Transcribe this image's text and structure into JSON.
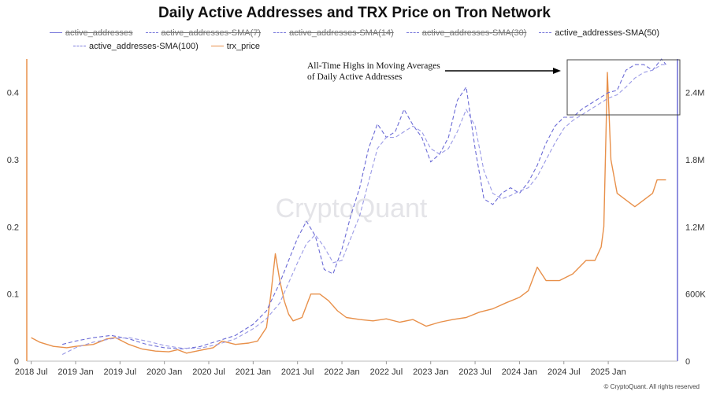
{
  "title": "Daily Active Addresses and TRX Price on Tron Network",
  "legend": [
    {
      "name": "active_addresses",
      "enabled": false,
      "style": "solid",
      "color": "#6b6bd6"
    },
    {
      "name": "active_addresses-SMA(7)",
      "enabled": false,
      "style": "dashed",
      "color": "#8c8ce0"
    },
    {
      "name": "active_addresses-SMA(14)",
      "enabled": false,
      "style": "dashed",
      "color": "#8c8ce0"
    },
    {
      "name": "active_addresses-SMA(30)",
      "enabled": false,
      "style": "dashed",
      "color": "#8c8ce0"
    },
    {
      "name": "active_addresses-SMA(50)",
      "enabled": true,
      "style": "dashed",
      "color": "#6b6bd6"
    },
    {
      "name": "active_addresses-SMA(100)",
      "enabled": true,
      "style": "dashed",
      "color": "#8888dd"
    },
    {
      "name": "trx_price",
      "enabled": true,
      "style": "solid",
      "color": "#e8904a"
    }
  ],
  "annotation": {
    "line1": "All-Time Highs in Moving Averages",
    "line2": "of Daily Active Addresses"
  },
  "watermark": "CryptoQuant",
  "copyright": "© CryptoQuant. All rights reserved",
  "colors": {
    "price": "#e8904a",
    "sma50": "#6b6bd6",
    "sma100": "#9a9ae6",
    "left_axis": "#e8904a",
    "right_axis": "#6b6bd6"
  },
  "chart_data": {
    "type": "line",
    "x_ticks": [
      "2018 Jul",
      "2019 Jan",
      "2019 Jul",
      "2020 Jan",
      "2020 Jul",
      "2021 Jan",
      "2021 Jul",
      "2022 Jan",
      "2022 Jul",
      "2023 Jan",
      "2023 Jul",
      "2024 Jan",
      "2024 Jul",
      "2025 Jan"
    ],
    "x_range": [
      2018.45,
      2025.78
    ],
    "y_left_ticks": [
      "0",
      "0.1",
      "0.2",
      "0.3",
      "0.4"
    ],
    "y_left_range": [
      0,
      0.45
    ],
    "y_right_ticks": [
      "0",
      "600K",
      "1.2M",
      "1.8M",
      "2.4M"
    ],
    "y_right_range": [
      0,
      2700000
    ],
    "series": [
      {
        "name": "trx_price",
        "axis": "left",
        "x": [
          2018.5,
          2018.6,
          2018.75,
          2018.9,
          2019.0,
          2019.2,
          2019.35,
          2019.45,
          2019.6,
          2019.75,
          2019.9,
          2020.05,
          2020.15,
          2020.25,
          2020.4,
          2020.55,
          2020.65,
          2020.8,
          2020.95,
          2021.05,
          2021.15,
          2021.2,
          2021.25,
          2021.3,
          2021.35,
          2021.4,
          2021.45,
          2021.55,
          2021.65,
          2021.75,
          2021.85,
          2021.95,
          2022.05,
          2022.2,
          2022.35,
          2022.5,
          2022.65,
          2022.8,
          2022.95,
          2023.1,
          2023.25,
          2023.4,
          2023.55,
          2023.7,
          2023.85,
          2024.0,
          2024.1,
          2024.2,
          2024.3,
          2024.45,
          2024.6,
          2024.75,
          2024.85,
          2024.92,
          2024.95,
          2024.99,
          2025.03,
          2025.1,
          2025.2,
          2025.3,
          2025.4,
          2025.5,
          2025.55,
          2025.6,
          2025.65
        ],
        "y": [
          0.035,
          0.028,
          0.022,
          0.02,
          0.022,
          0.025,
          0.033,
          0.035,
          0.025,
          0.018,
          0.015,
          0.014,
          0.017,
          0.012,
          0.016,
          0.02,
          0.03,
          0.025,
          0.027,
          0.03,
          0.05,
          0.1,
          0.16,
          0.12,
          0.09,
          0.07,
          0.06,
          0.065,
          0.1,
          0.1,
          0.09,
          0.075,
          0.065,
          0.062,
          0.06,
          0.063,
          0.058,
          0.062,
          0.052,
          0.058,
          0.062,
          0.065,
          0.073,
          0.078,
          0.087,
          0.095,
          0.105,
          0.14,
          0.12,
          0.12,
          0.13,
          0.15,
          0.15,
          0.17,
          0.2,
          0.43,
          0.3,
          0.25,
          0.24,
          0.23,
          0.24,
          0.25,
          0.27,
          0.27,
          0.27
        ]
      },
      {
        "name": "active_addresses-SMA(50)",
        "axis": "right",
        "x": [
          2018.85,
          2019.0,
          2019.2,
          2019.4,
          2019.6,
          2019.8,
          2020.0,
          2020.2,
          2020.4,
          2020.6,
          2020.8,
          2021.0,
          2021.15,
          2021.3,
          2021.4,
          2021.5,
          2021.6,
          2021.7,
          2021.8,
          2021.9,
          2022.0,
          2022.1,
          2022.2,
          2022.3,
          2022.4,
          2022.5,
          2022.6,
          2022.7,
          2022.8,
          2022.9,
          2023.0,
          2023.1,
          2023.2,
          2023.3,
          2023.4,
          2023.5,
          2023.6,
          2023.7,
          2023.8,
          2023.9,
          2024.0,
          2024.1,
          2024.2,
          2024.3,
          2024.4,
          2024.5,
          2024.6,
          2024.7,
          2024.8,
          2024.9,
          2025.0,
          2025.1,
          2025.2,
          2025.3,
          2025.4,
          2025.5,
          2025.6,
          2025.65
        ],
        "y": [
          150000,
          180000,
          210000,
          230000,
          200000,
          150000,
          120000,
          110000,
          130000,
          180000,
          230000,
          330000,
          450000,
          700000,
          900000,
          1100000,
          1250000,
          1120000,
          820000,
          780000,
          1000000,
          1300000,
          1550000,
          1900000,
          2120000,
          2000000,
          2050000,
          2250000,
          2110000,
          2000000,
          1780000,
          1850000,
          2000000,
          2330000,
          2450000,
          1900000,
          1450000,
          1400000,
          1500000,
          1550000,
          1500000,
          1600000,
          1750000,
          1950000,
          2100000,
          2180000,
          2180000,
          2250000,
          2300000,
          2350000,
          2400000,
          2420000,
          2600000,
          2650000,
          2650000,
          2600000,
          2700000,
          2650000
        ]
      },
      {
        "name": "active_addresses-SMA(100)",
        "axis": "right",
        "x": [
          2018.85,
          2019.0,
          2019.2,
          2019.4,
          2019.6,
          2019.8,
          2020.0,
          2020.2,
          2020.4,
          2020.6,
          2020.8,
          2021.0,
          2021.15,
          2021.3,
          2021.4,
          2021.5,
          2021.6,
          2021.7,
          2021.8,
          2021.9,
          2022.0,
          2022.1,
          2022.2,
          2022.3,
          2022.4,
          2022.5,
          2022.6,
          2022.7,
          2022.8,
          2022.9,
          2023.0,
          2023.1,
          2023.2,
          2023.3,
          2023.4,
          2023.5,
          2023.6,
          2023.7,
          2023.8,
          2023.9,
          2024.0,
          2024.1,
          2024.2,
          2024.3,
          2024.4,
          2024.5,
          2024.6,
          2024.7,
          2024.8,
          2024.9,
          2025.0,
          2025.1,
          2025.2,
          2025.3,
          2025.4,
          2025.5,
          2025.6,
          2025.65
        ],
        "y": [
          60000,
          120000,
          170000,
          200000,
          210000,
          180000,
          140000,
          115000,
          115000,
          150000,
          200000,
          290000,
          380000,
          520000,
          700000,
          880000,
          1050000,
          1130000,
          1020000,
          880000,
          900000,
          1100000,
          1300000,
          1600000,
          1900000,
          2000000,
          2000000,
          2050000,
          2100000,
          2050000,
          1900000,
          1850000,
          1900000,
          2050000,
          2250000,
          2100000,
          1700000,
          1500000,
          1450000,
          1480000,
          1520000,
          1550000,
          1650000,
          1800000,
          1950000,
          2080000,
          2150000,
          2200000,
          2250000,
          2300000,
          2350000,
          2380000,
          2450000,
          2530000,
          2580000,
          2600000,
          2650000,
          2650000
        ]
      }
    ]
  }
}
